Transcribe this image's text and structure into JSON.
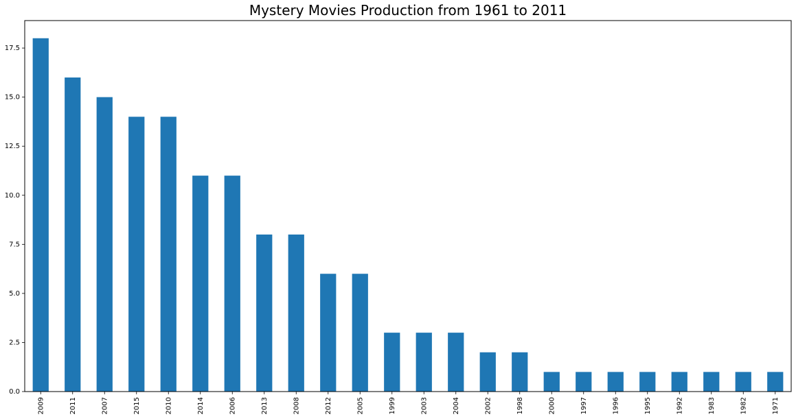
{
  "chart_data": {
    "type": "bar",
    "title": "Mystery Movies Production from 1961 to 2011",
    "xlabel": "",
    "ylabel": "",
    "categories": [
      "2009",
      "2011",
      "2007",
      "2015",
      "2010",
      "2014",
      "2006",
      "2013",
      "2008",
      "2012",
      "2005",
      "1999",
      "2003",
      "2004",
      "2002",
      "1998",
      "2000",
      "1997",
      "1996",
      "1995",
      "1992",
      "1983",
      "1982",
      "1971"
    ],
    "values": [
      18,
      16,
      15,
      14,
      14,
      11,
      11,
      8,
      8,
      6,
      6,
      3,
      3,
      3,
      2,
      2,
      1,
      1,
      1,
      1,
      1,
      1,
      1,
      1
    ],
    "ylim": [
      0,
      18.9
    ],
    "yticks": [
      0.0,
      2.5,
      5.0,
      7.5,
      10.0,
      12.5,
      15.0,
      17.5
    ],
    "ytick_labels": [
      "0.0",
      "2.5",
      "5.0",
      "7.5",
      "10.0",
      "12.5",
      "15.0",
      "17.5"
    ],
    "bar_color": "#1f77b4",
    "grid": false,
    "legend": "none"
  }
}
